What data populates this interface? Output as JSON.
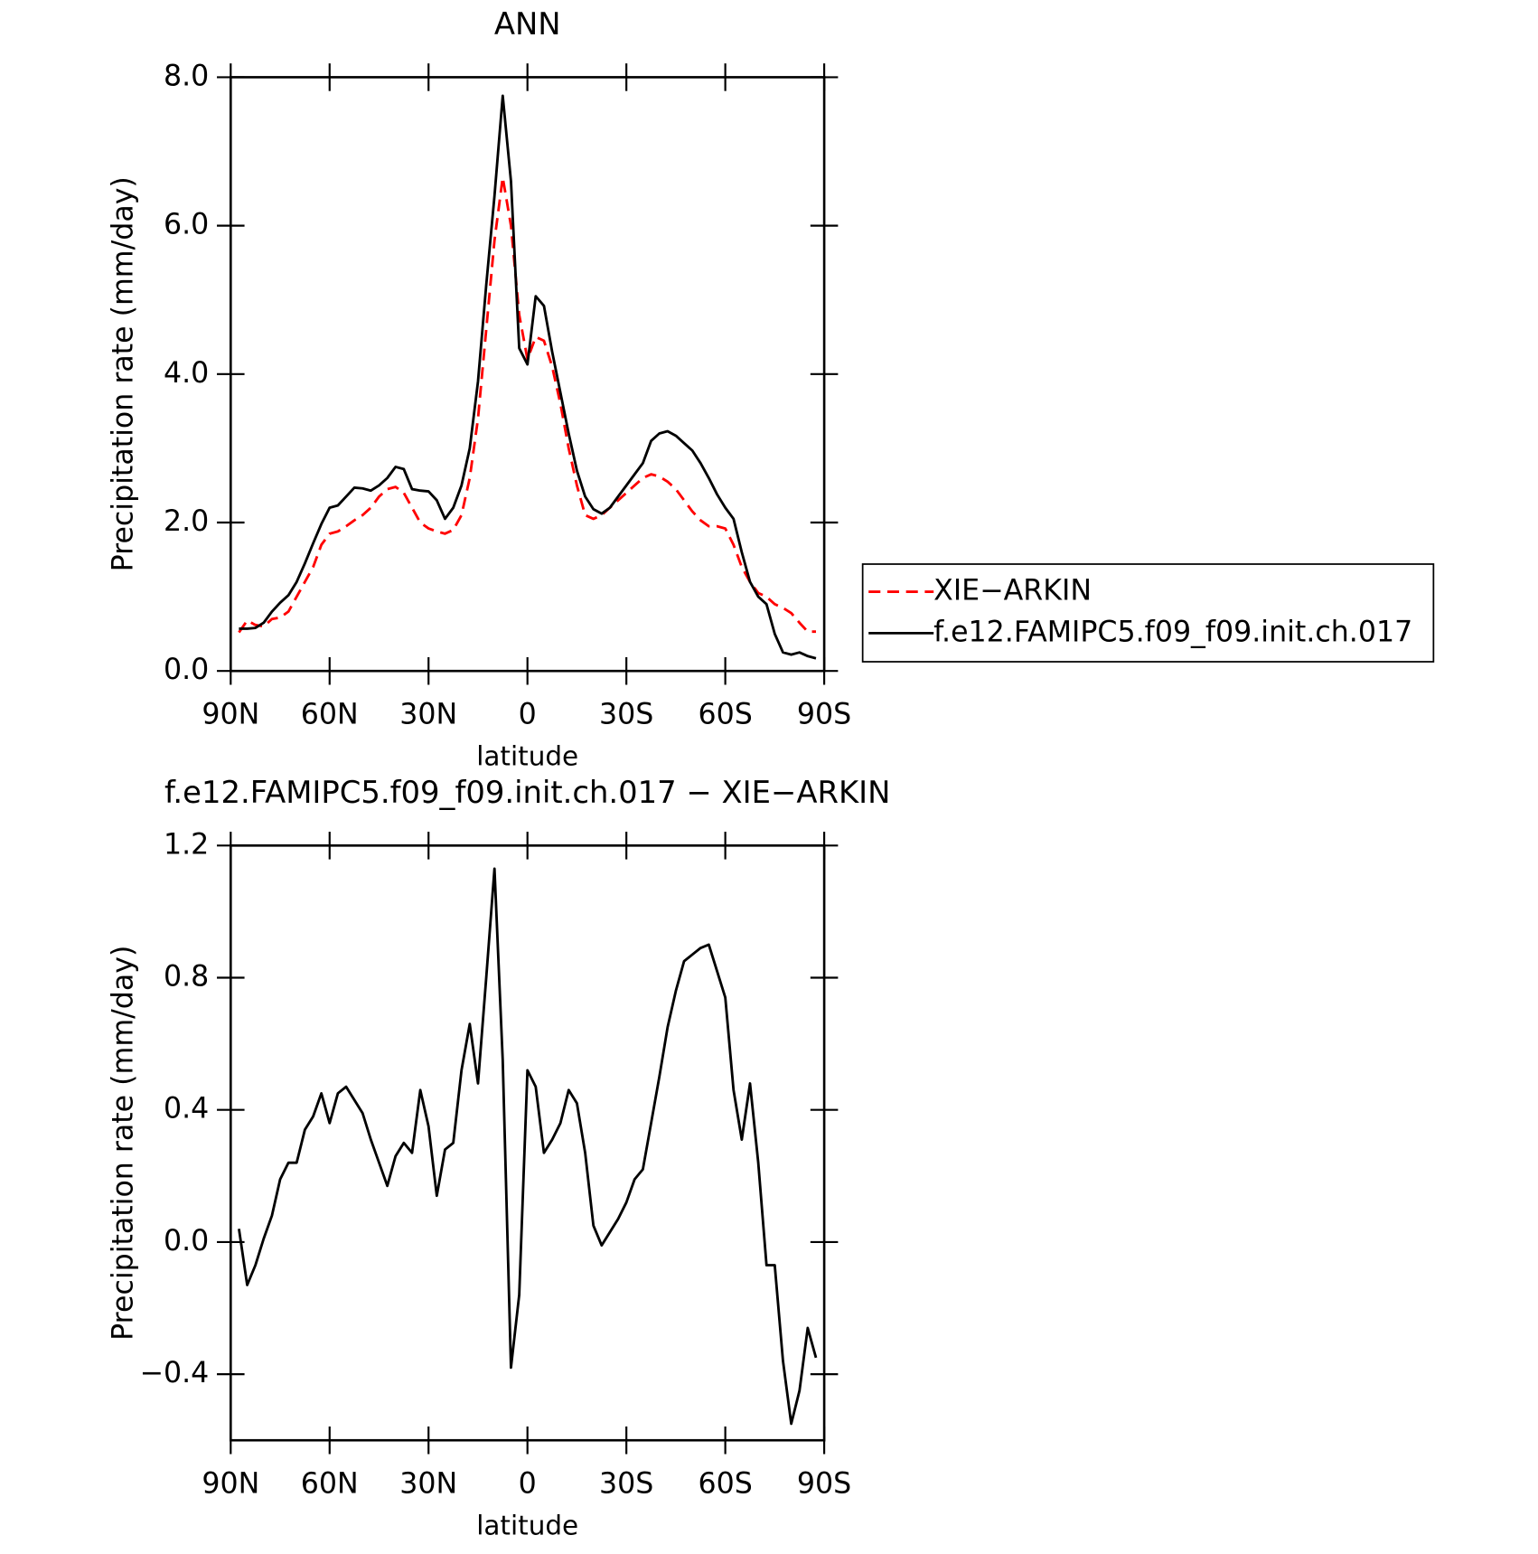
{
  "chart_data": [
    {
      "type": "line",
      "title": "ANN",
      "xlabel": "latitude",
      "ylabel": "Precipitation rate (mm/day)",
      "x": [
        87.5,
        85,
        82.5,
        80,
        77.5,
        75,
        72.5,
        70,
        67.5,
        65,
        62.5,
        60,
        57.5,
        55,
        52.5,
        50,
        47.5,
        45,
        42.5,
        40,
        37.5,
        35,
        32.5,
        30,
        27.5,
        25,
        22.5,
        20,
        17.5,
        15,
        12.5,
        10,
        7.5,
        5,
        2.5,
        0,
        -2.5,
        -5,
        -7.5,
        -10,
        -12.5,
        -15,
        -17.5,
        -20,
        -22.5,
        -25,
        -27.5,
        -30,
        -32.5,
        -35,
        -37.5,
        -40,
        -42.5,
        -45,
        -47.5,
        -50,
        -52.5,
        -55,
        -57.5,
        -60,
        -62.5,
        -65,
        -67.5,
        -70,
        -72.5,
        -75,
        -77.5,
        -80,
        -82.5,
        -85,
        -87.5
      ],
      "series": [
        {
          "name": "XIE−ARKIN",
          "color": "#ff0000",
          "linestyle": "dashed",
          "values": [
            0.52,
            0.68,
            0.62,
            0.6,
            0.7,
            0.72,
            0.8,
            1.0,
            1.2,
            1.4,
            1.7,
            1.85,
            1.88,
            1.95,
            2.03,
            2.1,
            2.2,
            2.35,
            2.45,
            2.48,
            2.4,
            2.2,
            2.0,
            1.92,
            1.88,
            1.85,
            1.9,
            2.1,
            2.6,
            3.4,
            4.6,
            5.8,
            6.65,
            6.0,
            4.8,
            4.2,
            4.5,
            4.45,
            4.1,
            3.6,
            3.0,
            2.5,
            2.1,
            2.05,
            2.1,
            2.2,
            2.3,
            2.4,
            2.5,
            2.6,
            2.65,
            2.62,
            2.55,
            2.45,
            2.3,
            2.15,
            2.03,
            1.95,
            1.95,
            1.92,
            1.7,
            1.4,
            1.2,
            1.05,
            1.0,
            0.9,
            0.85,
            0.78,
            0.65,
            0.53,
            0.53
          ]
        },
        {
          "name": "f.e12.FAMIPC5.f09_f09.init.ch.017",
          "color": "#000000",
          "linestyle": "solid",
          "values": [
            0.57,
            0.57,
            0.58,
            0.65,
            0.8,
            0.92,
            1.02,
            1.2,
            1.45,
            1.72,
            1.98,
            2.2,
            2.23,
            2.35,
            2.47,
            2.46,
            2.43,
            2.5,
            2.6,
            2.75,
            2.72,
            2.45,
            2.43,
            2.42,
            2.3,
            2.05,
            2.2,
            2.5,
            3.0,
            3.9,
            5.2,
            6.4,
            7.75,
            6.6,
            4.35,
            4.13,
            5.05,
            4.92,
            4.3,
            3.75,
            3.2,
            2.7,
            2.35,
            2.18,
            2.12,
            2.2,
            2.35,
            2.5,
            2.65,
            2.8,
            3.1,
            3.2,
            3.23,
            3.17,
            3.07,
            2.97,
            2.8,
            2.6,
            2.38,
            2.2,
            2.05,
            1.6,
            1.2,
            1.0,
            0.9,
            0.5,
            0.25,
            0.22,
            0.25,
            0.2,
            0.17
          ]
        }
      ],
      "xlim": [
        90,
        -90
      ],
      "xticks": [
        {
          "value": 90,
          "label": "90N"
        },
        {
          "value": 60,
          "label": "60N"
        },
        {
          "value": 30,
          "label": "30N"
        },
        0,
        {
          "value": -30,
          "label": "30S"
        },
        {
          "value": -60,
          "label": "60S"
        },
        {
          "value": -90,
          "label": "90S"
        }
      ],
      "ylim": [
        0,
        8
      ],
      "yticks": [
        {
          "value": 0,
          "label": "0.0"
        },
        {
          "value": 2,
          "label": "2.0"
        },
        {
          "value": 4,
          "label": "4.0"
        },
        {
          "value": 6,
          "label": "6.0"
        },
        {
          "value": 8,
          "label": "8.0"
        }
      ],
      "legend": "right"
    },
    {
      "type": "line",
      "title": "f.e12.FAMIPC5.f09_f09.init.ch.017 − XIE−ARKIN",
      "xlabel": "latitude",
      "ylabel": "Precipitation rate (mm/day)",
      "x": [
        87.5,
        85,
        82.5,
        80,
        77.5,
        75,
        72.5,
        70,
        67.5,
        65,
        62.5,
        60,
        57.5,
        55,
        52.5,
        50,
        47.5,
        45,
        42.5,
        40,
        37.5,
        35,
        32.5,
        30,
        27.5,
        25,
        22.5,
        20,
        17.5,
        15,
        12.5,
        10,
        7.5,
        5,
        2.5,
        0,
        -2.5,
        -5,
        -7.5,
        -10,
        -12.5,
        -15,
        -17.5,
        -20,
        -22.5,
        -25,
        -27.5,
        -30,
        -32.5,
        -35,
        -37.5,
        -40,
        -42.5,
        -45,
        -47.5,
        -50,
        -52.5,
        -55,
        -57.5,
        -60,
        -62.5,
        -65,
        -67.5,
        -70,
        -72.5,
        -75,
        -77.5,
        -80,
        -82.5,
        -85,
        -87.5
      ],
      "color": "#000000",
      "values": [
        0.04,
        -0.13,
        -0.07,
        0.01,
        0.08,
        0.19,
        0.24,
        0.24,
        0.34,
        0.38,
        0.45,
        0.36,
        0.45,
        0.47,
        0.43,
        0.39,
        0.31,
        0.24,
        0.17,
        0.26,
        0.3,
        0.27,
        0.46,
        0.35,
        0.14,
        0.28,
        0.3,
        0.52,
        0.66,
        0.48,
        0.8,
        1.13,
        0.55,
        -0.38,
        -0.16,
        0.52,
        0.47,
        0.27,
        0.31,
        0.36,
        0.46,
        0.42,
        0.27,
        0.05,
        -0.01,
        0.03,
        0.07,
        0.12,
        0.19,
        0.22,
        0.36,
        0.5,
        0.65,
        0.76,
        0.85,
        0.87,
        0.89,
        0.9,
        0.82,
        0.74,
        0.46,
        0.31,
        0.48,
        0.24,
        -0.07,
        -0.07,
        -0.36,
        -0.55,
        -0.45,
        -0.26,
        -0.35
      ],
      "xlim": [
        90,
        -90
      ],
      "xticks": [
        {
          "value": 90,
          "label": "90N"
        },
        {
          "value": 60,
          "label": "60N"
        },
        {
          "value": 30,
          "label": "30N"
        },
        0,
        {
          "value": -30,
          "label": "30S"
        },
        {
          "value": -60,
          "label": "60S"
        },
        {
          "value": -90,
          "label": "90S"
        }
      ],
      "ylim": [
        -0.6,
        1.2
      ],
      "yticks": [
        {
          "value": -0.4,
          "label": "−0.4"
        },
        {
          "value": 0,
          "label": "0.0"
        },
        {
          "value": 0.4,
          "label": "0.4"
        },
        {
          "value": 0.8,
          "label": "0.8"
        },
        {
          "value": 1.2,
          "label": "1.2"
        }
      ]
    }
  ]
}
